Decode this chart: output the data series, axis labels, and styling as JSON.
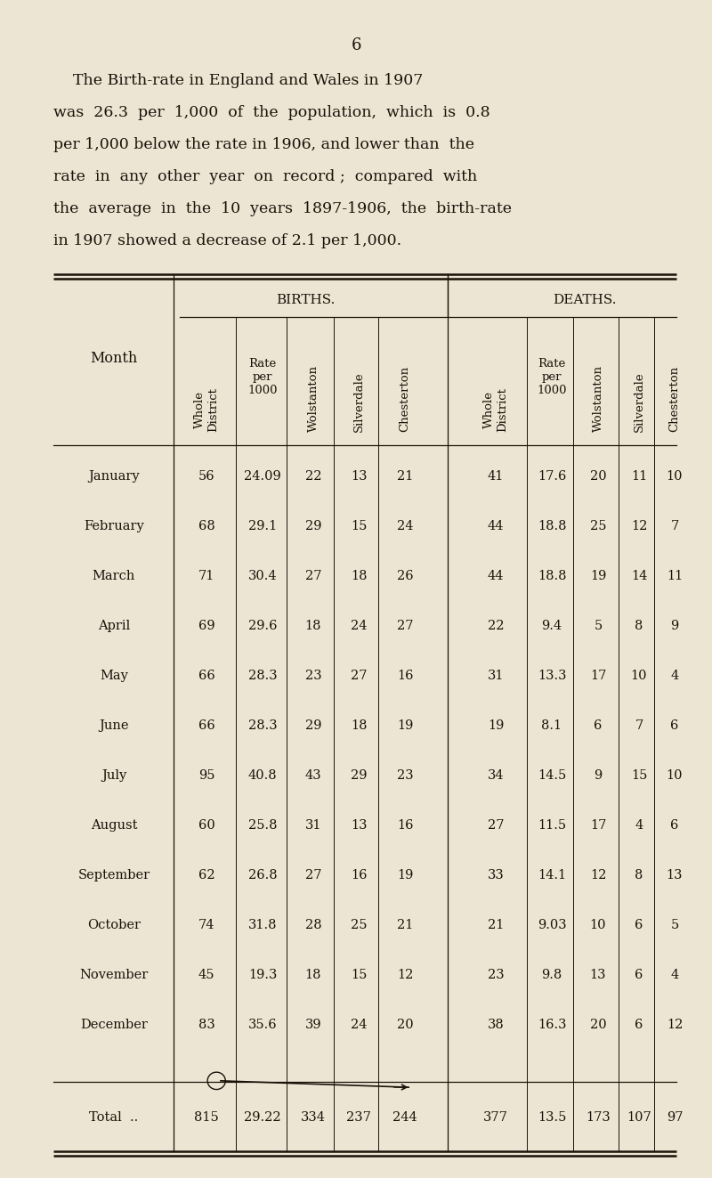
{
  "page_number": "6",
  "intro_lines": [
    "    The Birth-rate in England and Wales in 1907",
    "was  26.3  per  1,000  of  the  population,  which  is  0.8",
    "per 1,000 below the rate in 1906, and lower than  the",
    "rate  in  any  other  year  on  record ;  compared  with",
    "the  average  in  the  10  years  1897-1906,  the  birth-rate",
    "in 1907 showed a decrease of 2.1 per 1,000."
  ],
  "bg_color": "#ede5d4",
  "text_color": "#1a1208",
  "months": [
    "January",
    "February",
    "March",
    "April",
    "May",
    "June",
    "July",
    "August",
    "September",
    "October",
    "November",
    "December"
  ],
  "births_whole": [
    56,
    68,
    71,
    69,
    66,
    66,
    95,
    60,
    62,
    74,
    45,
    83
  ],
  "births_rate": [
    "24.09",
    "29.1",
    "30.4",
    "29.6",
    "28.3",
    "28.3",
    "40.8",
    "25.8",
    "26.8",
    "31.8",
    "19.3",
    "35.6"
  ],
  "births_wolstanton": [
    22,
    29,
    27,
    18,
    23,
    29,
    43,
    31,
    27,
    28,
    18,
    39
  ],
  "births_silverdale": [
    13,
    15,
    18,
    24,
    27,
    18,
    29,
    13,
    16,
    25,
    15,
    24
  ],
  "births_chesterton": [
    21,
    24,
    26,
    27,
    16,
    19,
    23,
    16,
    19,
    21,
    12,
    20
  ],
  "deaths_whole": [
    41,
    44,
    44,
    22,
    31,
    19,
    34,
    27,
    33,
    21,
    23,
    38
  ],
  "deaths_rate": [
    "17.6",
    "18.8",
    "18.8",
    "9.4",
    "13.3",
    "8.1",
    "14.5",
    "11.5",
    "14.1",
    "9.03",
    "9.8",
    "16.3"
  ],
  "deaths_wolstanton": [
    20,
    25,
    19,
    5,
    17,
    6,
    9,
    17,
    12,
    10,
    13,
    20
  ],
  "deaths_silverdale": [
    11,
    12,
    14,
    8,
    10,
    7,
    15,
    4,
    8,
    6,
    6,
    6
  ],
  "deaths_chesterton": [
    10,
    7,
    11,
    9,
    4,
    6,
    10,
    6,
    13,
    5,
    4,
    12
  ],
  "total_births_whole": 815,
  "total_births_rate": "29.22",
  "total_births_wolstanton": 334,
  "total_births_silverdale": 237,
  "total_births_chesterton": 244,
  "total_deaths_whole": 377,
  "total_deaths_rate": "13.5",
  "total_deaths_wolstanton": 173,
  "total_deaths_silverdale": 107,
  "total_deaths_chesterton": 97
}
